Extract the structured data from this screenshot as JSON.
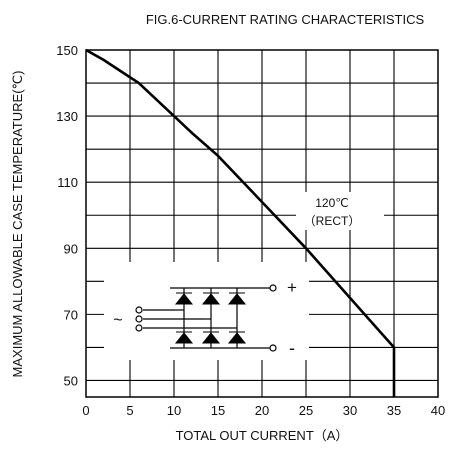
{
  "chart_data": {
    "type": "line",
    "title": "FIG.6-CURRENT RATING CHARACTERISTICS",
    "xlabel": "TOTAL OUT CURRENT（A）",
    "ylabel": "MAXIMUM ALLOWABLE CASE TEMPERATURE(℃)",
    "xlim": [
      0,
      40
    ],
    "ylim": [
      45,
      150
    ],
    "x_ticks": [
      "0",
      "5",
      "10",
      "15",
      "20",
      "25",
      "30",
      "35",
      "40"
    ],
    "y_ticks": [
      "150",
      "130",
      "110",
      "90",
      "70",
      "50"
    ],
    "grid": true,
    "series": [
      {
        "x": [
          0,
          2,
          4,
          6,
          8,
          10,
          12,
          15,
          20,
          25,
          30,
          35,
          35
        ],
        "y": [
          150,
          147,
          143.5,
          140,
          135,
          130,
          125,
          118,
          104,
          90,
          75,
          60,
          45
        ]
      }
    ],
    "annotations": {
      "condition_line1": "120℃",
      "condition_line2": "（RECT）",
      "plus_sign": "+",
      "minus_sign": "-",
      "ac_symbol": "~"
    }
  }
}
